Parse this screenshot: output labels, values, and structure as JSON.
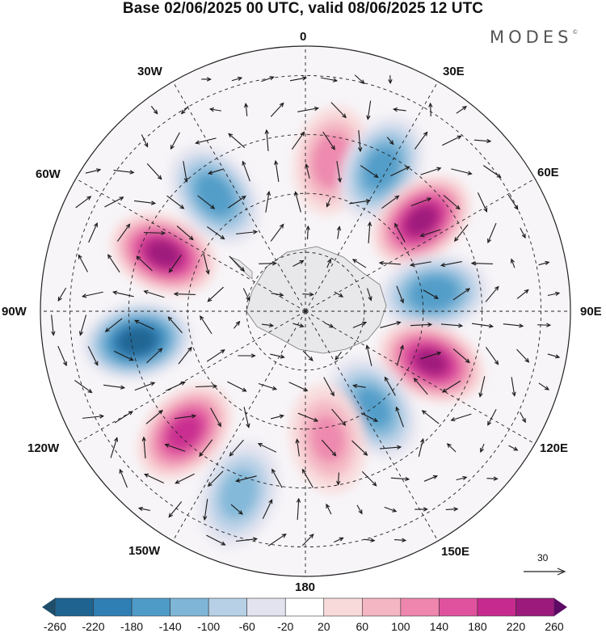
{
  "title": "Base 02/06/2025 00 UTC, valid 08/06/2025 12 UTC",
  "brand": {
    "text": "MODES",
    "mark": "©"
  },
  "meridian_labels": {
    "m0": "0",
    "m30e": "30E",
    "m60e": "60E",
    "m90e": "90E",
    "m120e": "120E",
    "m150e": "150E",
    "m180": "180",
    "m150w": "150W",
    "m120w": "120W",
    "m90w": "90W",
    "m60w": "60W",
    "m30w": "30W"
  },
  "vector_reference": {
    "value": "30"
  },
  "colorbar": {
    "labels": [
      "-260",
      "-220",
      "-180",
      "-140",
      "-100",
      "-60",
      "-20",
      "20",
      "60",
      "100",
      "140",
      "180",
      "220",
      "260"
    ],
    "colors": [
      "#1f4e6b",
      "#1f6491",
      "#2f7fb4",
      "#4f9bc8",
      "#7fb6d8",
      "#b7d0e6",
      "#e3e3ef",
      "#ffffff",
      "#f8dada",
      "#f4b6c3",
      "#ee86ad",
      "#e0529e",
      "#c72a8e",
      "#9b1a7c",
      "#5c0a64"
    ]
  },
  "anomaly_cells": [
    {
      "lon_deg": 10,
      "colat_deg": 52,
      "sign": "pos",
      "magnitude": 120
    },
    {
      "lon_deg": 28,
      "colat_deg": 55,
      "sign": "neg",
      "magnitude": 160
    },
    {
      "lon_deg": 52,
      "colat_deg": 50,
      "sign": "pos",
      "magnitude": 240
    },
    {
      "lon_deg": 82,
      "colat_deg": 44,
      "sign": "neg",
      "magnitude": 170
    },
    {
      "lon_deg": 112,
      "colat_deg": 46,
      "sign": "pos",
      "magnitude": 230
    },
    {
      "lon_deg": 145,
      "colat_deg": 40,
      "sign": "neg",
      "magnitude": 150
    },
    {
      "lon_deg": 170,
      "colat_deg": 44,
      "sign": "pos",
      "magnitude": 100
    },
    {
      "lon_deg": -160,
      "colat_deg": 66,
      "sign": "neg",
      "magnitude": 110
    },
    {
      "lon_deg": -135,
      "colat_deg": 58,
      "sign": "pos",
      "magnitude": 200
    },
    {
      "lon_deg": -100,
      "colat_deg": 58,
      "sign": "neg",
      "magnitude": 250
    },
    {
      "lon_deg": -68,
      "colat_deg": 52,
      "sign": "pos",
      "magnitude": 240
    },
    {
      "lon_deg": -38,
      "colat_deg": 50,
      "sign": "neg",
      "magnitude": 160
    }
  ]
}
